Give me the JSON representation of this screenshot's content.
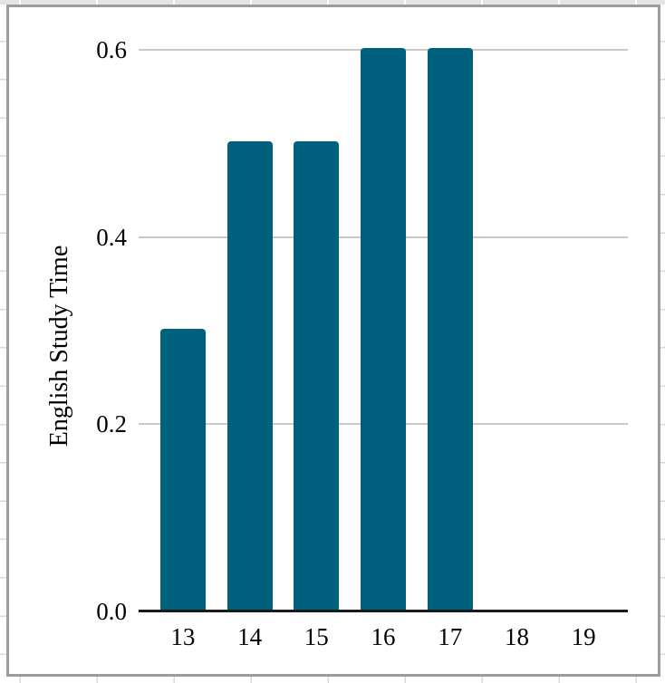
{
  "chart_data": {
    "type": "bar",
    "title": "",
    "xlabel": "",
    "ylabel": "English Study Time",
    "categories": [
      "13",
      "14",
      "15",
      "16",
      "17",
      "18",
      "19"
    ],
    "values": [
      0.3,
      0.5,
      0.5,
      0.6,
      0.6,
      0,
      0
    ],
    "yticks": [
      {
        "label": "0.0",
        "value": 0.0
      },
      {
        "label": "0.2",
        "value": 0.2
      },
      {
        "label": "0.4",
        "value": 0.4
      },
      {
        "label": "0.6",
        "value": 0.6
      }
    ],
    "ylim": [
      0,
      0.6
    ],
    "grid": "horizontal-only",
    "legend": "none",
    "colors": {
      "bar": "#00617E",
      "gridline": "#C8C8C8",
      "axis": "#1A1A1A",
      "panel_border": "#9C9C9C",
      "sheet_gridline": "#D9D9D9"
    }
  }
}
